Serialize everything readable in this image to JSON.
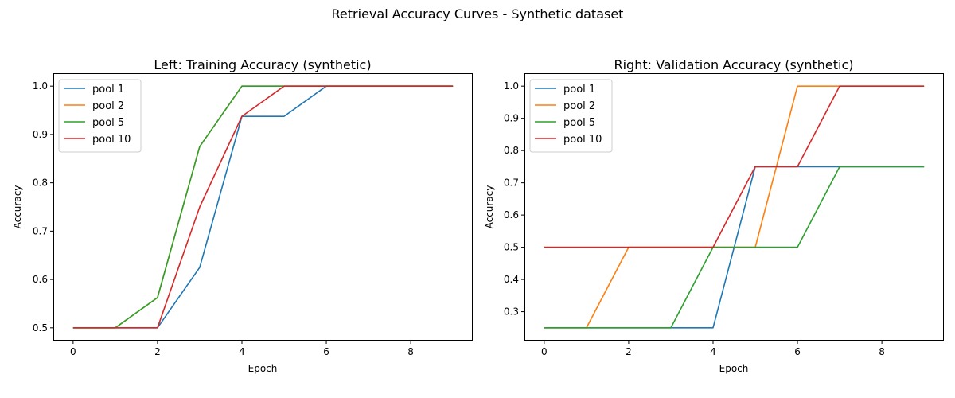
{
  "figure": {
    "suptitle": "Retrieval Accuracy Curves - Synthetic dataset"
  },
  "chart_data": [
    {
      "type": "line",
      "title": "Left: Training Accuracy (synthetic)",
      "xlabel": "Epoch",
      "ylabel": "Accuracy",
      "x": [
        0,
        1,
        2,
        3,
        4,
        5,
        6,
        7,
        8,
        9
      ],
      "xlim": [
        -0.45,
        9.45
      ],
      "ylim": [
        0.475,
        1.025
      ],
      "xticks": [
        0,
        2,
        4,
        6,
        8
      ],
      "yticks": [
        0.5,
        0.6,
        0.7,
        0.8,
        0.9,
        1.0
      ],
      "ytick_labels": [
        "0.5",
        "0.6",
        "0.7",
        "0.8",
        "0.9",
        "1.0"
      ],
      "grid": false,
      "legend_position": "top-left",
      "series": [
        {
          "name": "pool 1",
          "color": "#1f77b4",
          "values": [
            0.5,
            0.5,
            0.5,
            0.625,
            0.9375,
            0.9375,
            1.0,
            1.0,
            1.0,
            1.0
          ]
        },
        {
          "name": "pool 2",
          "color": "#ff7f0e",
          "values": [
            0.5,
            0.5,
            0.5625,
            0.875,
            1.0,
            1.0,
            1.0,
            1.0,
            1.0,
            1.0
          ]
        },
        {
          "name": "pool 5",
          "color": "#2ca02c",
          "values": [
            0.5,
            0.5,
            0.5625,
            0.875,
            1.0,
            1.0,
            1.0,
            1.0,
            1.0,
            1.0
          ]
        },
        {
          "name": "pool 10",
          "color": "#d62728",
          "values": [
            0.5,
            0.5,
            0.5,
            0.75,
            0.9375,
            1.0,
            1.0,
            1.0,
            1.0,
            1.0
          ]
        }
      ]
    },
    {
      "type": "line",
      "title": "Right: Validation Accuracy (synthetic)",
      "xlabel": "Epoch",
      "ylabel": "Accuracy",
      "x": [
        0,
        1,
        2,
        3,
        4,
        5,
        6,
        7,
        8,
        9
      ],
      "xlim": [
        -0.45,
        9.45
      ],
      "ylim": [
        0.2125,
        1.0375
      ],
      "xticks": [
        0,
        2,
        4,
        6,
        8
      ],
      "yticks": [
        0.3,
        0.4,
        0.5,
        0.6,
        0.7,
        0.8,
        0.9,
        1.0
      ],
      "ytick_labels": [
        "0.3",
        "0.4",
        "0.5",
        "0.6",
        "0.7",
        "0.8",
        "0.9",
        "1.0"
      ],
      "grid": false,
      "legend_position": "top-left",
      "series": [
        {
          "name": "pool 1",
          "color": "#1f77b4",
          "values": [
            0.25,
            0.25,
            0.25,
            0.25,
            0.25,
            0.75,
            0.75,
            0.75,
            0.75,
            0.75
          ]
        },
        {
          "name": "pool 2",
          "color": "#ff7f0e",
          "values": [
            0.25,
            0.25,
            0.5,
            0.5,
            0.5,
            0.5,
            1.0,
            1.0,
            1.0,
            1.0
          ]
        },
        {
          "name": "pool 5",
          "color": "#2ca02c",
          "values": [
            0.25,
            0.25,
            0.25,
            0.25,
            0.5,
            0.5,
            0.5,
            0.75,
            0.75,
            0.75
          ]
        },
        {
          "name": "pool 10",
          "color": "#d62728",
          "values": [
            0.5,
            0.5,
            0.5,
            0.5,
            0.5,
            0.75,
            0.75,
            1.0,
            1.0,
            1.0
          ]
        }
      ]
    }
  ]
}
